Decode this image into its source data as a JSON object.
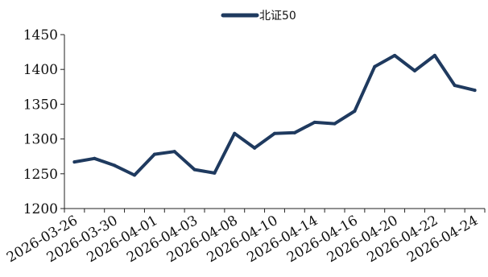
{
  "chart_data": {
    "type": "line",
    "title": "",
    "xlabel": "",
    "ylabel": "",
    "ylim": [
      1200,
      1450
    ],
    "yticks": [
      1200,
      1250,
      1300,
      1350,
      1400,
      1450
    ],
    "x": [
      "2026-03-26",
      "2026-03-27",
      "2026-03-30",
      "2026-03-31",
      "2026-04-01",
      "2026-04-02",
      "2026-04-03",
      "2026-04-07",
      "2026-04-08",
      "2026-04-09",
      "2026-04-10",
      "2026-04-13",
      "2026-04-14",
      "2026-04-15",
      "2026-04-16",
      "2026-04-17",
      "2026-04-20",
      "2026-04-21",
      "2026-04-22",
      "2026-04-23",
      "2026-04-24"
    ],
    "xtick_labels": [
      "2026-03-26",
      "2026-03-30",
      "2026-04-01",
      "2026-04-03",
      "2026-04-08",
      "2026-04-10",
      "2026-04-14",
      "2026-04-16",
      "2026-04-20",
      "2026-04-22",
      "2026-04-24"
    ],
    "series": [
      {
        "name": "北证50",
        "color": "#1f3a5f",
        "values": [
          1267,
          1272,
          1262,
          1248,
          1278,
          1282,
          1256,
          1251,
          1308,
          1287,
          1308,
          1309,
          1324,
          1322,
          1340,
          1404,
          1420,
          1398,
          1420,
          1377,
          1370
        ]
      }
    ],
    "grid": false,
    "legend": "top-center"
  }
}
